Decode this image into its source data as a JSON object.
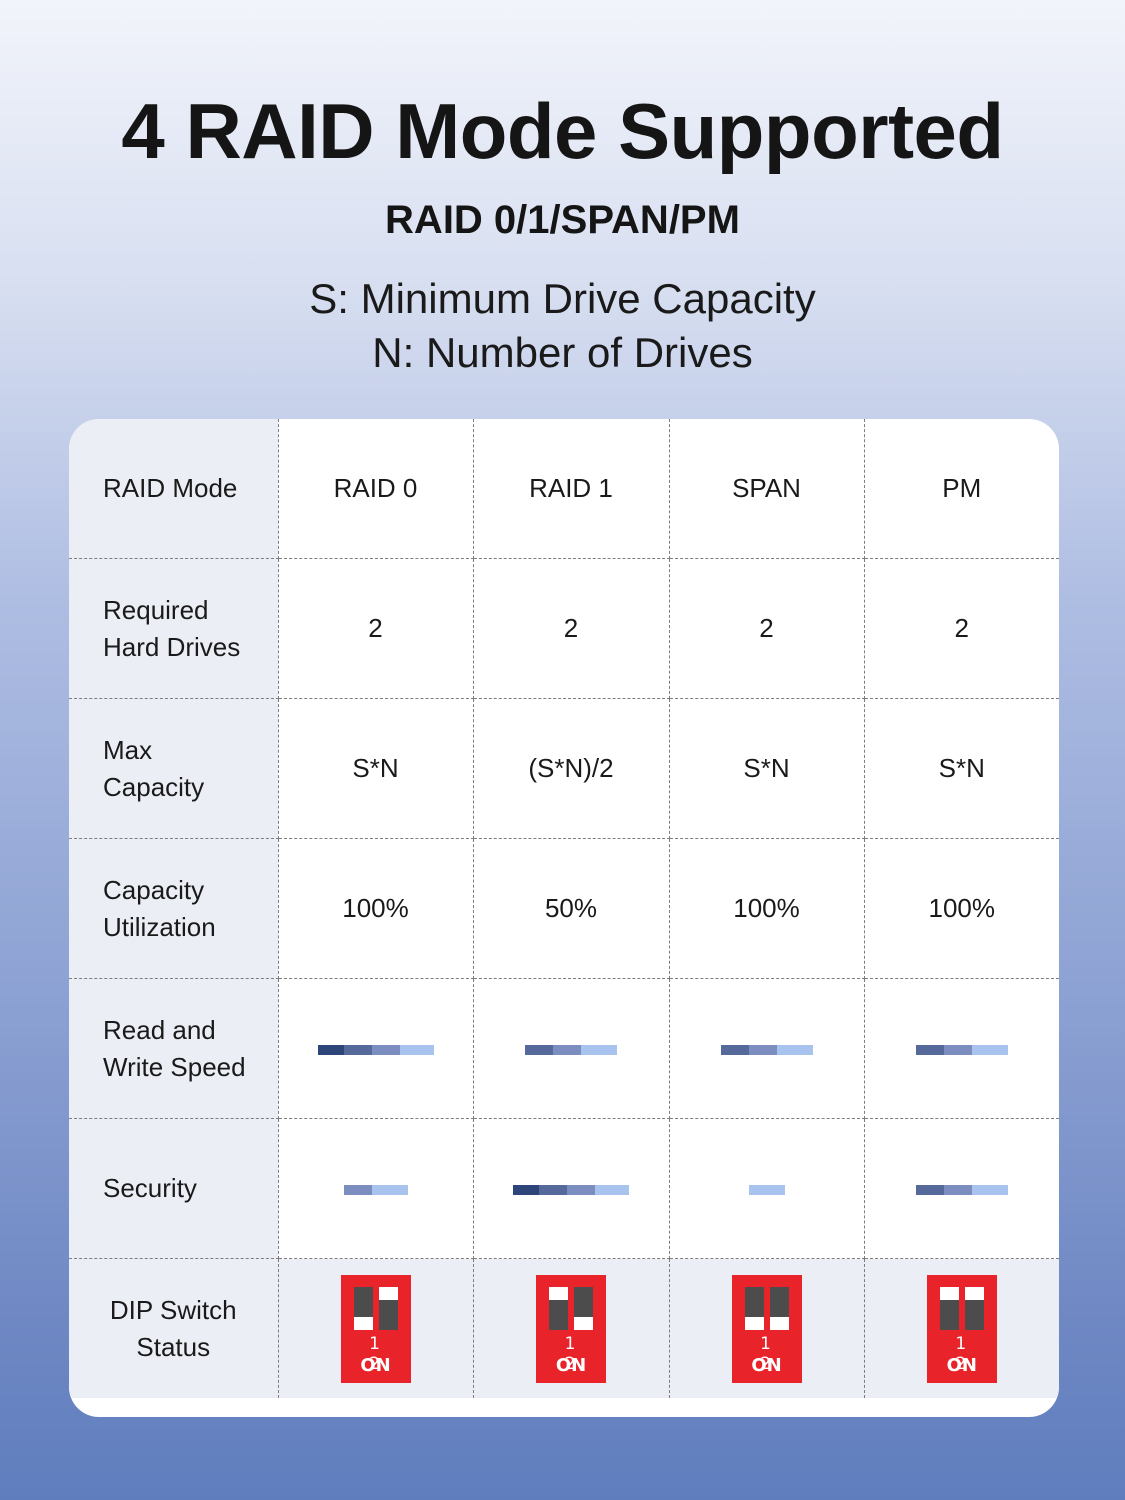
{
  "header": {
    "title": "4 RAID Mode Supported",
    "subtitle": "RAID 0/1/SPAN/PM",
    "legend_s": "S: Minimum Drive Capacity",
    "legend_n": "N: Number of Drives"
  },
  "table": {
    "row_labels": {
      "mode": "RAID Mode",
      "drives_1": "Required",
      "drives_2": "Hard Drives",
      "capacity_1": "Max",
      "capacity_2": "Capacity",
      "util_1": "Capacity",
      "util_2": "Utilization",
      "speed_1": "Read and",
      "speed_2": "Write Speed",
      "security": "Security",
      "dip_1": "DIP Switch",
      "dip_2": "Status"
    },
    "modes": [
      "RAID 0",
      "RAID 1",
      "SPAN",
      "PM"
    ],
    "required_drives": [
      "2",
      "2",
      "2",
      "2"
    ],
    "max_capacity": [
      "S*N",
      "(S*N)/2",
      "S*N",
      "S*N"
    ],
    "capacity_utilization": [
      "100%",
      "50%",
      "100%",
      "100%"
    ],
    "read_write_speed_level": [
      4,
      3,
      3,
      3
    ],
    "security_level": [
      2,
      4,
      1,
      3
    ],
    "dip_switch": [
      {
        "sw1": "down",
        "sw2": "up",
        "nums": "1 2",
        "on": "ON"
      },
      {
        "sw1": "up",
        "sw2": "down",
        "nums": "1 2",
        "on": "ON"
      },
      {
        "sw1": "down",
        "sw2": "down",
        "nums": "1 2",
        "on": "ON"
      },
      {
        "sw1": "up",
        "sw2": "up",
        "nums": "1 2",
        "on": "ON"
      }
    ]
  },
  "colors": {
    "bar_dark": "#2d4579",
    "bar_mid": "#56699b",
    "bar_light": "#7b8ebf",
    "bar_lightest": "#a9c3ef",
    "dip_red": "#e8232a"
  }
}
